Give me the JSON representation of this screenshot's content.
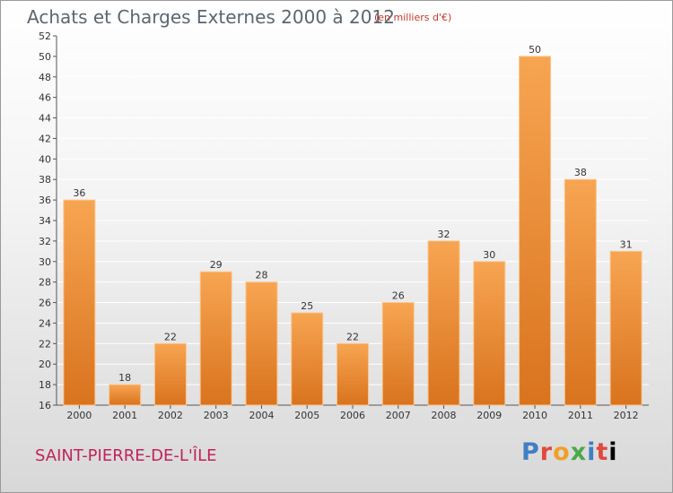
{
  "header": {
    "title": "Achats et Charges Externes 2000 à 2012",
    "unit": "(en milliers d'€)"
  },
  "footer": {
    "commune": "SAINT-PIERRE-DE-L'ÎLE",
    "logo": "Proxiti"
  },
  "colors": {
    "bar_light": "#f7a552",
    "bar_dark": "#d9731e",
    "gridline": "#ffffff"
  },
  "chart_data": {
    "type": "bar",
    "title": "Achats et Charges Externes 2000 à 2012",
    "subtitle": "(en milliers d'€)",
    "categories": [
      "2000",
      "2001",
      "2002",
      "2003",
      "2004",
      "2005",
      "2006",
      "2007",
      "2008",
      "2009",
      "2010",
      "2011",
      "2012"
    ],
    "values": [
      36,
      18,
      22,
      29,
      28,
      25,
      22,
      26,
      32,
      30,
      50,
      38,
      31
    ],
    "ylim": [
      16,
      52
    ],
    "yticks": [
      16,
      18,
      20,
      22,
      24,
      26,
      28,
      30,
      32,
      34,
      36,
      38,
      40,
      42,
      44,
      46,
      48,
      50,
      52
    ],
    "grid": true,
    "xlabel": "",
    "ylabel": ""
  }
}
